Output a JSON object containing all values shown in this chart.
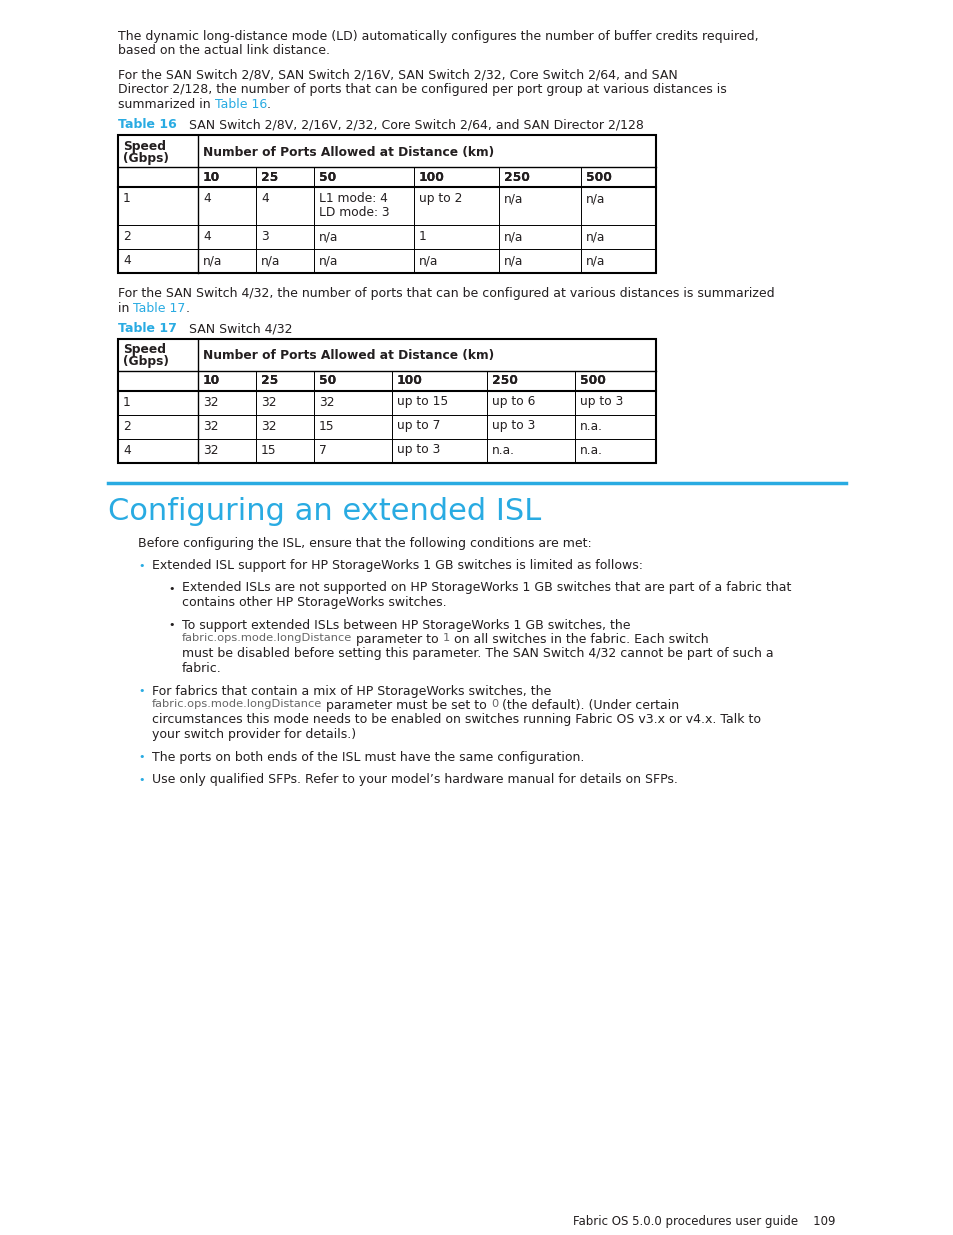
{
  "page_bg": "#ffffff",
  "text_color": "#231f20",
  "cyan_color": "#29abe2",
  "code_color": "#666666",
  "table_border": "#000000",
  "para1_line1": "The dynamic long-distance mode (LD) automatically configures the number of buffer credits required,",
  "para1_line2": "based on the actual link distance.",
  "para2_line1": "For the SAN Switch 2/8V, SAN Switch 2/16V, SAN Switch 2/32, Core Switch 2/64, and SAN",
  "para2_line2": "Director 2/128, the number of ports that can be configured per port group at various distances is",
  "para2_line3_pre": "summarized in ",
  "para2_line3_link": "Table 16",
  "para2_line3_post": ".",
  "table16_label_cyan": "Table 16",
  "table16_label_rest": "   SAN Switch 2/8V, 2/16V, 2/32, Core Switch 2/64, and SAN Director 2/128",
  "table16_subheaders": [
    "10",
    "25",
    "50",
    "100",
    "250",
    "500"
  ],
  "table16_rows": [
    [
      "1",
      "4",
      "4",
      "L1 mode: 4\nLD mode: 3",
      "up to 2",
      "n/a",
      "n/a"
    ],
    [
      "2",
      "4",
      "3",
      "n/a",
      "1",
      "n/a",
      "n/a"
    ],
    [
      "4",
      "n/a",
      "n/a",
      "n/a",
      "n/a",
      "n/a",
      "n/a"
    ]
  ],
  "para3_line1": "For the SAN Switch 4/32, the number of ports that can be configured at various distances is summarized",
  "para3_line2_pre": "in ",
  "para3_line2_link": "Table 17",
  "para3_line2_post": ".",
  "table17_label_cyan": "Table 17",
  "table17_label_rest": "   SAN Switch 4/32",
  "table17_subheaders": [
    "10",
    "25",
    "50",
    "100",
    "250",
    "500"
  ],
  "table17_rows": [
    [
      "1",
      "32",
      "32",
      "32",
      "up to 15",
      "up to 6",
      "up to 3"
    ],
    [
      "2",
      "32",
      "32",
      "15",
      "up to 7",
      "up to 3",
      "n.a."
    ],
    [
      "4",
      "32",
      "15",
      "7",
      "up to 3",
      "n.a.",
      "n.a."
    ]
  ],
  "section_title": "Configuring an extended ISL",
  "section_intro": "Before configuring the ISL, ensure that the following conditions are met:",
  "b1_text": "Extended ISL support for HP StorageWorks 1 GB switches is limited as follows:",
  "b1a_l1": "Extended ISLs are not supported on HP StorageWorks 1 GB switches that are part of a fabric that",
  "b1a_l2": "contains other HP StorageWorks switches.",
  "b1b_l1": "To support extended ISLs between HP StorageWorks 1 GB switches, the",
  "b1b_l2_code": "fabric.ops.mode.longDistance",
  "b1b_l2_pre": " parameter to ",
  "b1b_l2_code2": "1",
  "b1b_l2_post": " on all switches in the fabric. Each switch",
  "b1b_l3": "must be disabled before setting this parameter. The SAN Switch 4/32 cannot be part of such a",
  "b1b_l4": "fabric.",
  "b2_l1": "For fabrics that contain a mix of HP StorageWorks switches, the",
  "b2_l2_code": "fabric.ops.mode.longDistance",
  "b2_l2_pre": " parameter must be set to ",
  "b2_l2_code2": "0",
  "b2_l2_post": " (the default). (Under certain",
  "b2_l3": "circumstances this mode needs to be enabled on switches running Fabric OS v3.x or v4.x. Talk to",
  "b2_l4": "your switch provider for details.)",
  "b3_text": "The ports on both ends of the ISL must have the same configuration.",
  "b4_text": "Use only qualified SFPs. Refer to your model’s hardware manual for details on SFPs.",
  "footer": "Fabric OS 5.0.0 procedures user guide    109",
  "col_widths_16": [
    80,
    58,
    58,
    100,
    85,
    82,
    75
  ],
  "col_widths_17": [
    80,
    58,
    58,
    78,
    95,
    88,
    81
  ]
}
